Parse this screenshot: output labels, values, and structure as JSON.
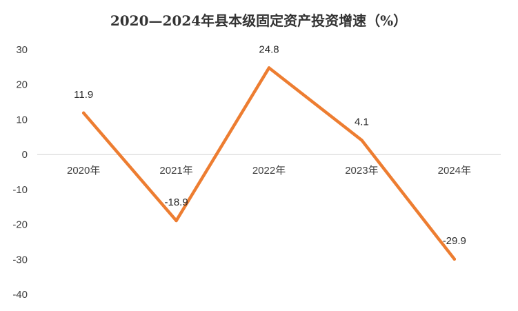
{
  "chart_data": {
    "type": "line",
    "title": "2020—2024年县本级固定资产投资增速（%）",
    "categories": [
      "2020年",
      "2021年",
      "2022年",
      "2023年",
      "2024年"
    ],
    "series": [
      {
        "values": [
          11.9,
          -18.9,
          24.8,
          4.1,
          -29.9
        ],
        "color": "#ED7D31"
      }
    ],
    "data_labels": [
      "11.9",
      "-18.9",
      "24.8",
      "4.1",
      "-29.9"
    ],
    "y_ticks": [
      "30",
      "20",
      "10",
      "0",
      "-10",
      "-20",
      "-30",
      "-40"
    ],
    "ylim": [
      -40,
      30
    ],
    "grid": false,
    "legend": "none",
    "axis_color": "#D9D9D9"
  }
}
